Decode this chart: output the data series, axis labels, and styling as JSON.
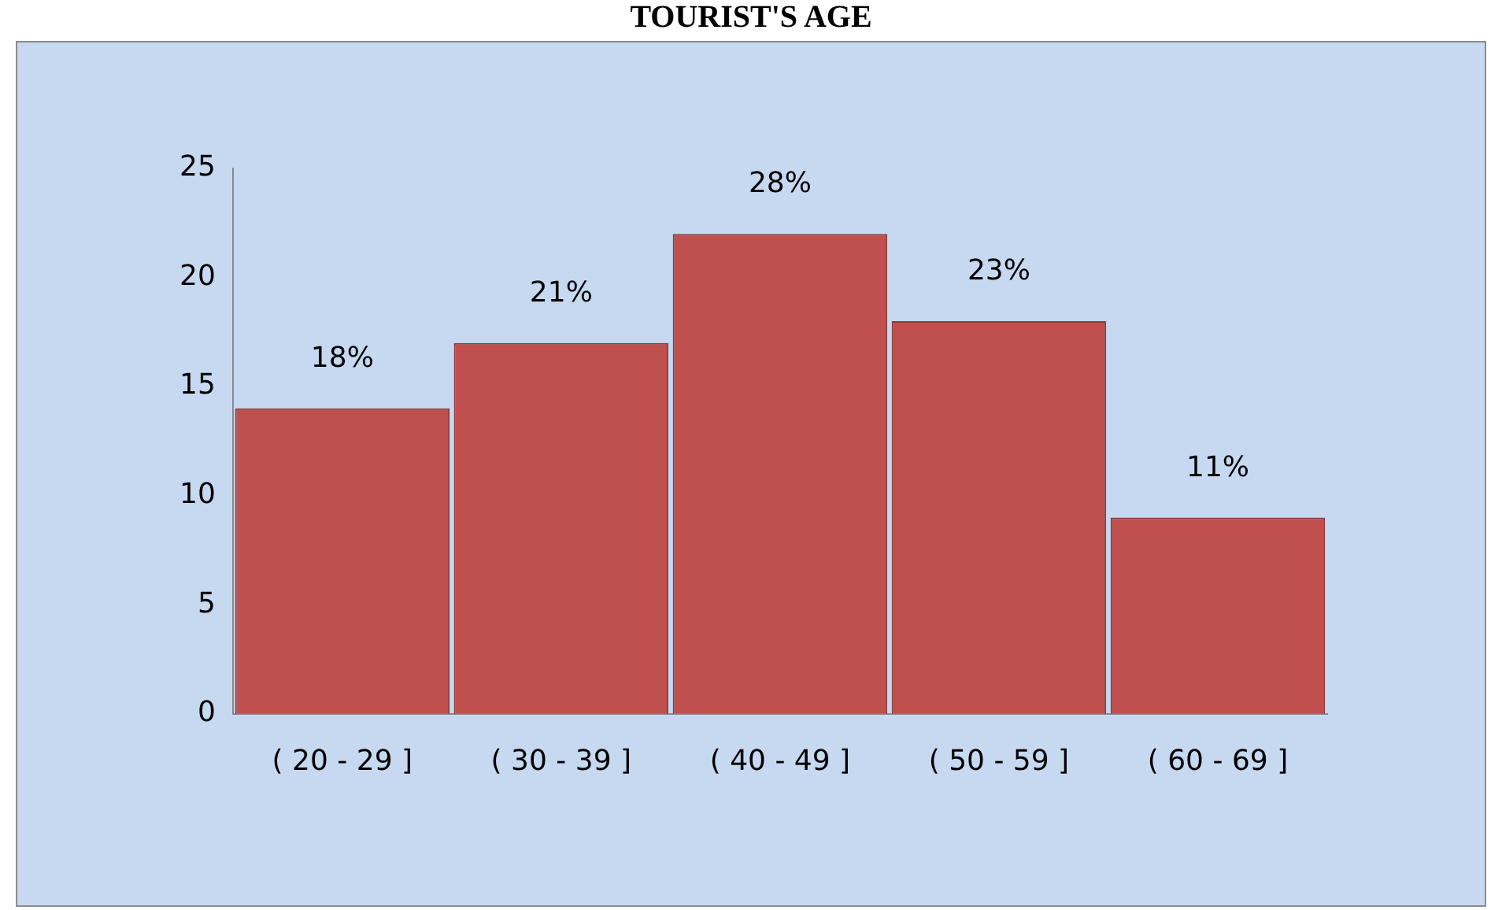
{
  "chart_data": {
    "type": "bar",
    "title": "TOURIST'S AGE",
    "categories": [
      "( 20 - 29 ]",
      "( 30 - 39 ]",
      "( 40 - 49 ]",
      "( 50 - 59 ]",
      "( 60 - 69 ]"
    ],
    "values": [
      14,
      17,
      22,
      18,
      9
    ],
    "annotations": [
      {
        "text": "18%",
        "x": "( 20 - 29 ]",
        "y": 14
      },
      {
        "text": "21%",
        "x": "( 30 - 39 ]",
        "y": 17
      },
      {
        "text": "28%",
        "x": "( 40 - 49 ]",
        "y": 22
      },
      {
        "text": "23%",
        "x": "( 50 - 59 ]",
        "y": 18
      },
      {
        "text": "11%",
        "x": "( 60 - 69 ]",
        "y": 9
      }
    ],
    "color": "#c0504d",
    "ylim": [
      0,
      25
    ],
    "yticks": [
      0,
      5,
      10,
      15,
      20,
      25
    ],
    "grid": false,
    "legend": false
  }
}
